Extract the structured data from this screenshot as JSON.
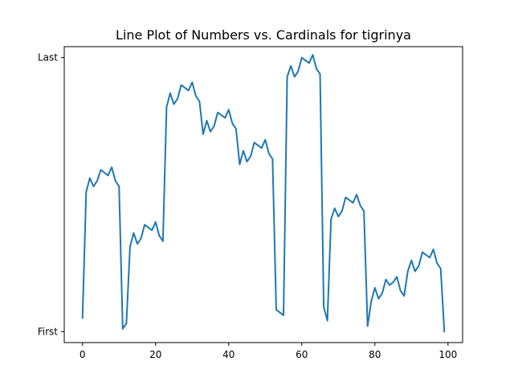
{
  "chart_data": {
    "type": "line",
    "title": "Line Plot of Numbers vs. Cardinals for tigrinya",
    "xlabel": "",
    "ylabel": "",
    "xlim": [
      -5,
      104
    ],
    "ylim": [
      -0.04,
      1.04
    ],
    "grid": false,
    "x_ticks": [
      0,
      20,
      40,
      60,
      80,
      100
    ],
    "x_tick_labels": [
      "0",
      "20",
      "40",
      "60",
      "80",
      "100"
    ],
    "y_ticks": [
      0,
      1
    ],
    "y_tick_labels": [
      "First",
      "Last"
    ],
    "series": [
      {
        "color": "#1f77b4",
        "x": [
          0,
          1,
          2,
          3,
          4,
          5,
          6,
          7,
          8,
          9,
          10,
          11,
          12,
          13,
          14,
          15,
          16,
          17,
          18,
          19,
          20,
          21,
          22,
          23,
          24,
          25,
          26,
          27,
          28,
          29,
          30,
          31,
          32,
          33,
          34,
          35,
          36,
          37,
          38,
          39,
          40,
          41,
          42,
          43,
          44,
          45,
          46,
          47,
          48,
          49,
          50,
          51,
          52,
          53,
          54,
          55,
          56,
          57,
          58,
          59,
          60,
          61,
          62,
          63,
          64,
          65,
          66,
          67,
          68,
          69,
          70,
          71,
          72,
          73,
          74,
          75,
          76,
          77,
          78,
          79,
          80,
          81,
          82,
          83,
          84,
          85,
          86,
          87,
          88,
          89,
          90,
          91,
          92,
          93,
          94,
          95,
          96,
          97,
          98,
          99
        ],
        "values": [
          0.05,
          0.51,
          0.56,
          0.53,
          0.55,
          0.59,
          0.58,
          0.57,
          0.6,
          0.55,
          0.53,
          0.01,
          0.03,
          0.31,
          0.36,
          0.32,
          0.34,
          0.39,
          0.38,
          0.37,
          0.4,
          0.35,
          0.33,
          0.82,
          0.87,
          0.83,
          0.85,
          0.9,
          0.89,
          0.88,
          0.91,
          0.86,
          0.84,
          0.72,
          0.77,
          0.73,
          0.75,
          0.8,
          0.79,
          0.78,
          0.81,
          0.76,
          0.74,
          0.61,
          0.66,
          0.62,
          0.64,
          0.69,
          0.68,
          0.67,
          0.7,
          0.65,
          0.63,
          0.08,
          0.07,
          0.06,
          0.93,
          0.97,
          0.93,
          0.95,
          1.0,
          0.99,
          0.98,
          1.01,
          0.96,
          0.94,
          0.09,
          0.04,
          0.41,
          0.45,
          0.42,
          0.44,
          0.49,
          0.48,
          0.47,
          0.5,
          0.46,
          0.44,
          0.02,
          0.11,
          0.16,
          0.12,
          0.14,
          0.19,
          0.17,
          0.18,
          0.2,
          0.15,
          0.13,
          0.22,
          0.26,
          0.22,
          0.24,
          0.29,
          0.28,
          0.27,
          0.3,
          0.25,
          0.23,
          0.0
        ]
      }
    ]
  }
}
